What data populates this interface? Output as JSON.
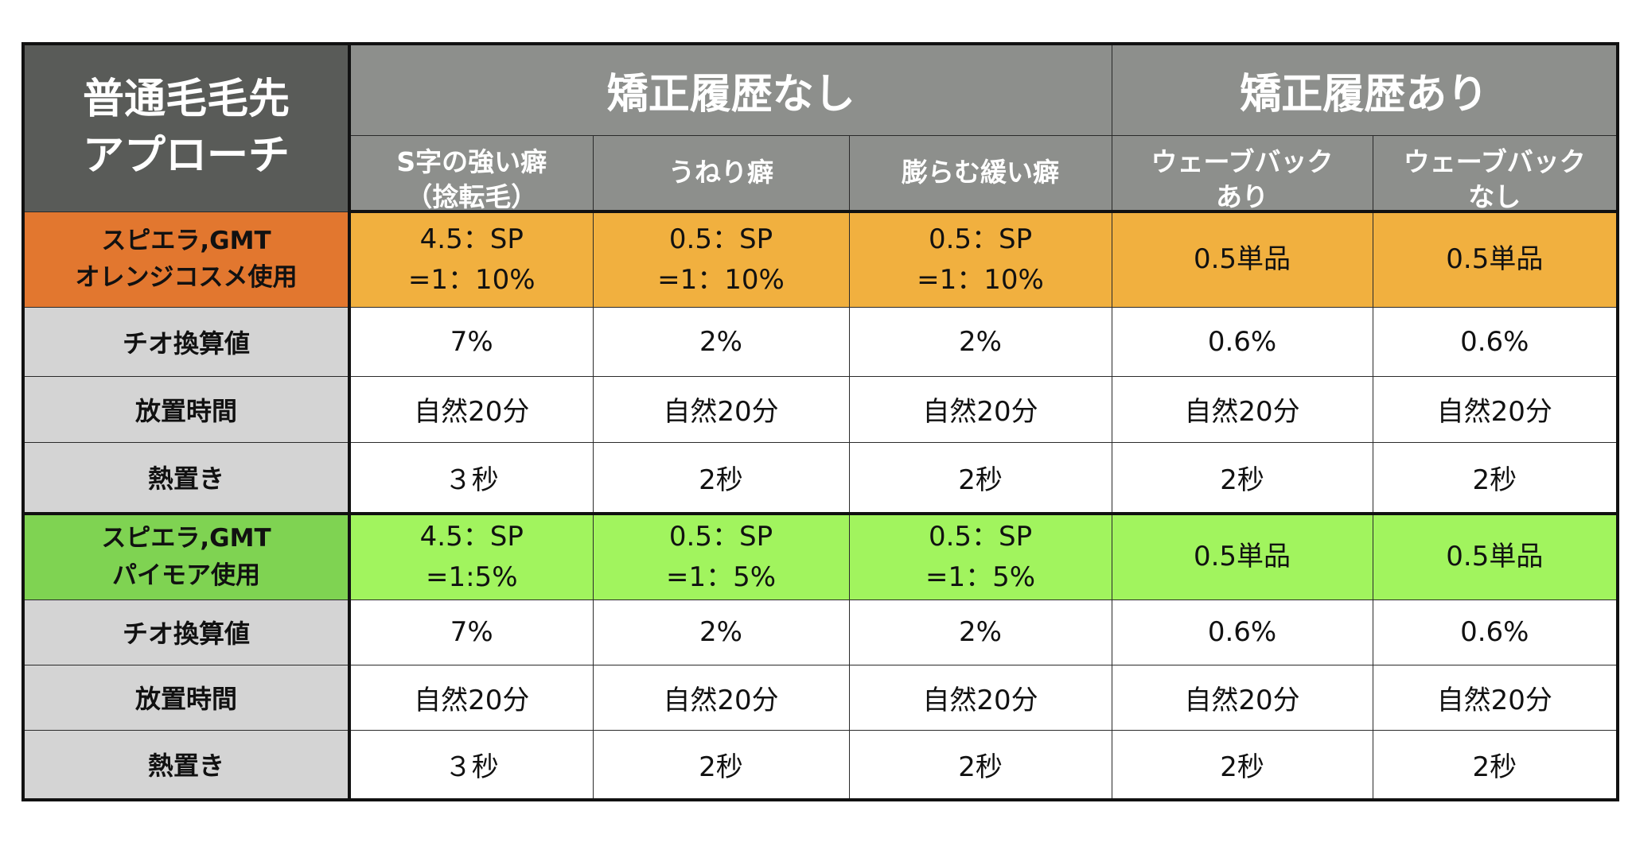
{
  "corner": {
    "line1": "普通毛毛先",
    "line2": "アプローチ"
  },
  "groups": {
    "no_history": "矯正履歴なし",
    "with_history": "矯正履歴あり"
  },
  "subheaders": {
    "s_curl_line1": "S字の強い癖",
    "s_curl_line2": "（捻転毛）",
    "wavy": "うねり癖",
    "loose": "膨らむ緩い癖",
    "waveback_yes_line1": "ウェーブバック",
    "waveback_yes_line2": "あり",
    "waveback_no_line1": "ウェーブバック",
    "waveback_no_line2": "なし"
  },
  "section_orange": {
    "label_line1": "スピエラ,GMT",
    "label_line2": "オレンジコスメ使用",
    "head": [
      {
        "line1": "4.5：SP",
        "line2": "=1：10%"
      },
      {
        "line1": "0.5：SP",
        "line2": "=1：10%"
      },
      {
        "line1": "0.5：SP",
        "line2": "=1：10%"
      },
      {
        "line1": "0.5単品",
        "line2": ""
      },
      {
        "line1": "0.5単品",
        "line2": ""
      }
    ],
    "rows": [
      {
        "label": "チオ換算値",
        "values": [
          "7%",
          "2%",
          "2%",
          "0.6%",
          "0.6%"
        ]
      },
      {
        "label": "放置時間",
        "values": [
          "自然20分",
          "自然20分",
          "自然20分",
          "自然20分",
          "自然20分"
        ]
      },
      {
        "label": "熱置き",
        "values": [
          "３秒",
          "2秒",
          "2秒",
          "2秒",
          "2秒"
        ]
      }
    ]
  },
  "section_green": {
    "label_line1": "スピエラ,GMT",
    "label_line2": "パイモア使用",
    "head": [
      {
        "line1": "4.5：SP",
        "line2": "=1:5%"
      },
      {
        "line1": "0.5：SP",
        "line2": "=1：5%"
      },
      {
        "line1": "0.5：SP",
        "line2": "=1：5%"
      },
      {
        "line1": "0.5単品",
        "line2": ""
      },
      {
        "line1": "0.5単品",
        "line2": ""
      }
    ],
    "rows": [
      {
        "label": "チオ換算値",
        "values": [
          "7%",
          "2%",
          "2%",
          "0.6%",
          "0.6%"
        ]
      },
      {
        "label": "放置時間",
        "values": [
          "自然20分",
          "自然20分",
          "自然20分",
          "自然20分",
          "自然20分"
        ]
      },
      {
        "label": "熱置き",
        "values": [
          "３秒",
          "2秒",
          "2秒",
          "2秒",
          "2秒"
        ]
      }
    ]
  }
}
